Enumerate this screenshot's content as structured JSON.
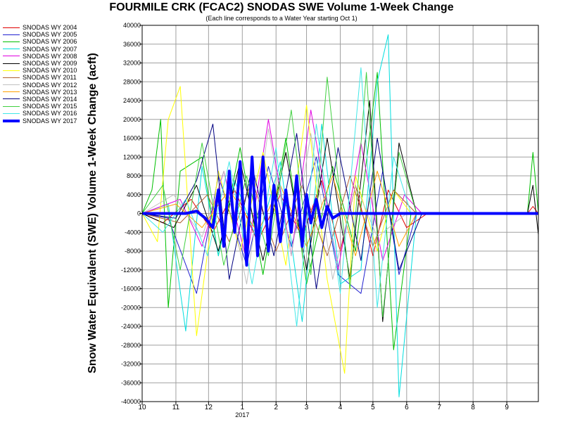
{
  "chart_data": {
    "type": "line",
    "title": "FOURMILE CRK (FCAC2) SNODAS SWE Volume 1-Week Change",
    "subtitle": "(Each line corresponds to a Water Year starting Oct 1)",
    "ylabel": "Snow Water Equivalent (SWE) Volume 1-Week Change (acft)",
    "xlabel": "",
    "ylim": [
      -40000,
      40000
    ],
    "yticks": [
      40000,
      36000,
      32000,
      28000,
      24000,
      20000,
      16000,
      12000,
      8000,
      4000,
      0,
      -4000,
      -8000,
      -12000,
      -16000,
      -20000,
      -24000,
      -28000,
      -32000,
      -36000,
      -40000
    ],
    "xlim": [
      "10-01",
      "10-01"
    ],
    "xtick_labels": [
      "10",
      "11",
      "12",
      "1",
      "2",
      "3",
      "4",
      "5",
      "6",
      "7",
      "8",
      "9"
    ],
    "xtick_months": [
      "10-01",
      "11-01",
      "12-01",
      "01-01",
      "02-01",
      "03-01",
      "04-01",
      "05-01",
      "06-01",
      "07-01",
      "08-01",
      "09-01"
    ],
    "year_label": "2017",
    "year_label_under_month": "01-01",
    "grid": true,
    "legend_position": "left",
    "series": [
      {
        "name": "SNODAS WY 2004",
        "color": "#e00000",
        "x": [
          "10-01",
          "10-20",
          "11-15",
          "12-05",
          "12-25",
          "01-15",
          "02-05",
          "02-25",
          "03-15",
          "04-01",
          "04-15",
          "05-01",
          "05-15",
          "06-01",
          "06-20",
          "09-20",
          "09-25",
          "09-30"
        ],
        "y": [
          0,
          -2000,
          3000,
          -4000,
          5000,
          -6000,
          4000,
          -5000,
          7000,
          -8000,
          6000,
          -9000,
          5000,
          -3000,
          0,
          0,
          1500,
          0
        ]
      },
      {
        "name": "SNODAS WY 2005",
        "color": "#2020d0",
        "x": [
          "10-01",
          "10-25",
          "11-20",
          "12-10",
          "01-05",
          "01-25",
          "02-15",
          "03-10",
          "03-30",
          "04-20",
          "05-10",
          "05-25",
          "06-10",
          "09-30"
        ],
        "y": [
          0,
          -1000,
          -17000,
          8000,
          -11000,
          10000,
          -7000,
          12000,
          -13000,
          -17000,
          9000,
          -13000,
          0,
          0
        ]
      },
      {
        "name": "SNODAS WY 2006",
        "color": "#00c000",
        "x": [
          "10-01",
          "10-10",
          "10-18",
          "10-25",
          "11-05",
          "11-25",
          "12-10",
          "12-30",
          "01-20",
          "02-10",
          "03-01",
          "03-25",
          "04-15",
          "05-05",
          "05-20",
          "06-05",
          "09-20",
          "09-25",
          "09-30"
        ],
        "y": [
          0,
          5000,
          20000,
          -20000,
          9000,
          12000,
          -9000,
          14000,
          -13000,
          16000,
          -15000,
          10000,
          -8000,
          30000,
          -29000,
          0,
          0,
          13000,
          0
        ]
      },
      {
        "name": "SNODAS WY 2007",
        "color": "#00dede",
        "x": [
          "10-01",
          "10-25",
          "11-10",
          "11-25",
          "12-10",
          "12-25",
          "01-15",
          "02-05",
          "02-25",
          "03-15",
          "04-01",
          "04-20",
          "05-05",
          "05-15",
          "05-25",
          "06-10",
          "09-30"
        ],
        "y": [
          0,
          2000,
          -25000,
          10000,
          -9000,
          7000,
          -6000,
          11000,
          -23000,
          19000,
          -15000,
          -12000,
          28000,
          38000,
          -39000,
          0,
          0
        ]
      },
      {
        "name": "SNODAS WY 2008",
        "color": "#e000e0",
        "x": [
          "10-01",
          "11-05",
          "11-25",
          "12-15",
          "01-05",
          "01-25",
          "02-15",
          "03-05",
          "03-30",
          "04-20",
          "05-10",
          "05-30",
          "06-15",
          "09-30"
        ],
        "y": [
          0,
          3000,
          -7000,
          9000,
          -10000,
          20000,
          -9000,
          22000,
          -12000,
          15000,
          -10000,
          4000,
          0,
          0
        ]
      },
      {
        "name": "SNODAS WY 2009",
        "color": "#000000",
        "x": [
          "10-01",
          "10-30",
          "11-20",
          "12-10",
          "12-30",
          "01-20",
          "02-10",
          "03-01",
          "03-20",
          "04-10",
          "04-28",
          "05-10",
          "05-25",
          "06-10",
          "09-20",
          "09-25",
          "09-30"
        ],
        "y": [
          0,
          -3000,
          6000,
          -8000,
          11000,
          -10000,
          13000,
          -12000,
          16000,
          -14000,
          24000,
          -23000,
          15000,
          0,
          0,
          6000,
          -4500
        ]
      },
      {
        "name": "SNODAS WY 2010",
        "color": "#ffff00",
        "x": [
          "10-01",
          "10-15",
          "10-25",
          "11-05",
          "11-20",
          "12-10",
          "12-30",
          "01-20",
          "02-10",
          "03-01",
          "03-20",
          "04-05",
          "04-15",
          "05-05",
          "05-20",
          "06-05",
          "09-30"
        ],
        "y": [
          0,
          -6000,
          20000,
          27000,
          -26000,
          9000,
          -8000,
          13000,
          -11000,
          23000,
          -14000,
          -34000,
          8000,
          -8000,
          5000,
          0,
          0
        ]
      },
      {
        "name": "SNODAS WY 2011",
        "color": "#b06030",
        "x": [
          "10-01",
          "11-05",
          "11-30",
          "12-20",
          "01-10",
          "02-01",
          "02-25",
          "03-20",
          "04-10",
          "05-01",
          "05-20",
          "06-10",
          "09-30"
        ],
        "y": [
          0,
          -2000,
          4000,
          -6000,
          7000,
          -8000,
          6000,
          -9000,
          8000,
          -7000,
          5000,
          0,
          0
        ]
      },
      {
        "name": "SNODAS WY 2012",
        "color": "#c0c0c0",
        "x": [
          "10-01",
          "10-30",
          "11-25",
          "12-15",
          "01-05",
          "01-25",
          "02-15",
          "03-05",
          "03-25",
          "04-15",
          "05-05",
          "06-01",
          "09-30"
        ],
        "y": [
          0,
          4000,
          -5000,
          9000,
          -15000,
          18000,
          -9000,
          17000,
          -14000,
          6000,
          -5000,
          0,
          0
        ]
      },
      {
        "name": "SNODAS WY 2013",
        "color": "#ffa000",
        "x": [
          "10-01",
          "11-01",
          "11-25",
          "12-20",
          "01-15",
          "02-05",
          "03-01",
          "03-25",
          "04-15",
          "05-05",
          "05-25",
          "06-10",
          "09-30"
        ],
        "y": [
          0,
          2000,
          -3000,
          5000,
          -4000,
          6000,
          -7000,
          8000,
          -9000,
          9000,
          -7000,
          0,
          0
        ]
      },
      {
        "name": "SNODAS WY 2014",
        "color": "#000080",
        "x": [
          "10-01",
          "11-01",
          "11-20",
          "12-05",
          "12-20",
          "01-10",
          "01-30",
          "02-20",
          "03-10",
          "03-30",
          "04-20",
          "05-05",
          "05-25",
          "06-15",
          "09-30"
        ],
        "y": [
          0,
          -1000,
          7000,
          19000,
          -14000,
          10000,
          -9000,
          17000,
          -16000,
          14000,
          -10000,
          16000,
          -12000,
          0,
          0
        ]
      },
      {
        "name": "SNODAS WY 2015",
        "color": "#40d040",
        "x": [
          "10-01",
          "10-20",
          "11-05",
          "11-25",
          "12-15",
          "01-05",
          "01-25",
          "02-15",
          "03-05",
          "03-20",
          "04-10",
          "04-25",
          "05-10",
          "05-25",
          "06-10",
          "09-30"
        ],
        "y": [
          0,
          6000,
          -12000,
          15000,
          -11000,
          8000,
          -9000,
          22000,
          -13000,
          29000,
          -16000,
          30000,
          -22000,
          13000,
          0,
          0
        ]
      },
      {
        "name": "SNODAS WY 2016",
        "color": "#40e8e8",
        "x": [
          "10-01",
          "10-20",
          "11-10",
          "11-30",
          "12-20",
          "01-10",
          "02-01",
          "02-20",
          "03-10",
          "04-01",
          "04-20",
          "05-05",
          "05-20",
          "06-05",
          "09-30"
        ],
        "y": [
          0,
          -4000,
          3000,
          -9000,
          11000,
          -15000,
          14000,
          -24000,
          19000,
          -17000,
          31000,
          -20000,
          12000,
          0,
          0
        ]
      },
      {
        "name": "SNODAS WY 2017",
        "color": "#0000ff",
        "x": [
          "10-01",
          "11-10",
          "11-20",
          "11-28",
          "12-05",
          "12-10",
          "12-15",
          "12-20",
          "12-25",
          "12-30",
          "01-05",
          "01-10",
          "01-15",
          "01-20",
          "01-25",
          "01-30",
          "02-05",
          "02-10",
          "02-15",
          "02-20",
          "02-25",
          "03-01",
          "03-05",
          "03-10",
          "03-15",
          "03-20",
          "03-25",
          "04-01",
          "04-10",
          "09-30"
        ],
        "y": [
          0,
          0,
          500,
          -1000,
          -3000,
          5000,
          -7000,
          9000,
          -4000,
          11000,
          -11000,
          12000,
          -9000,
          12000,
          -8000,
          6000,
          -6000,
          5000,
          -4000,
          8000,
          -7000,
          4000,
          -2000,
          3000,
          -3000,
          1500,
          -1000,
          0,
          0,
          0
        ]
      }
    ]
  }
}
